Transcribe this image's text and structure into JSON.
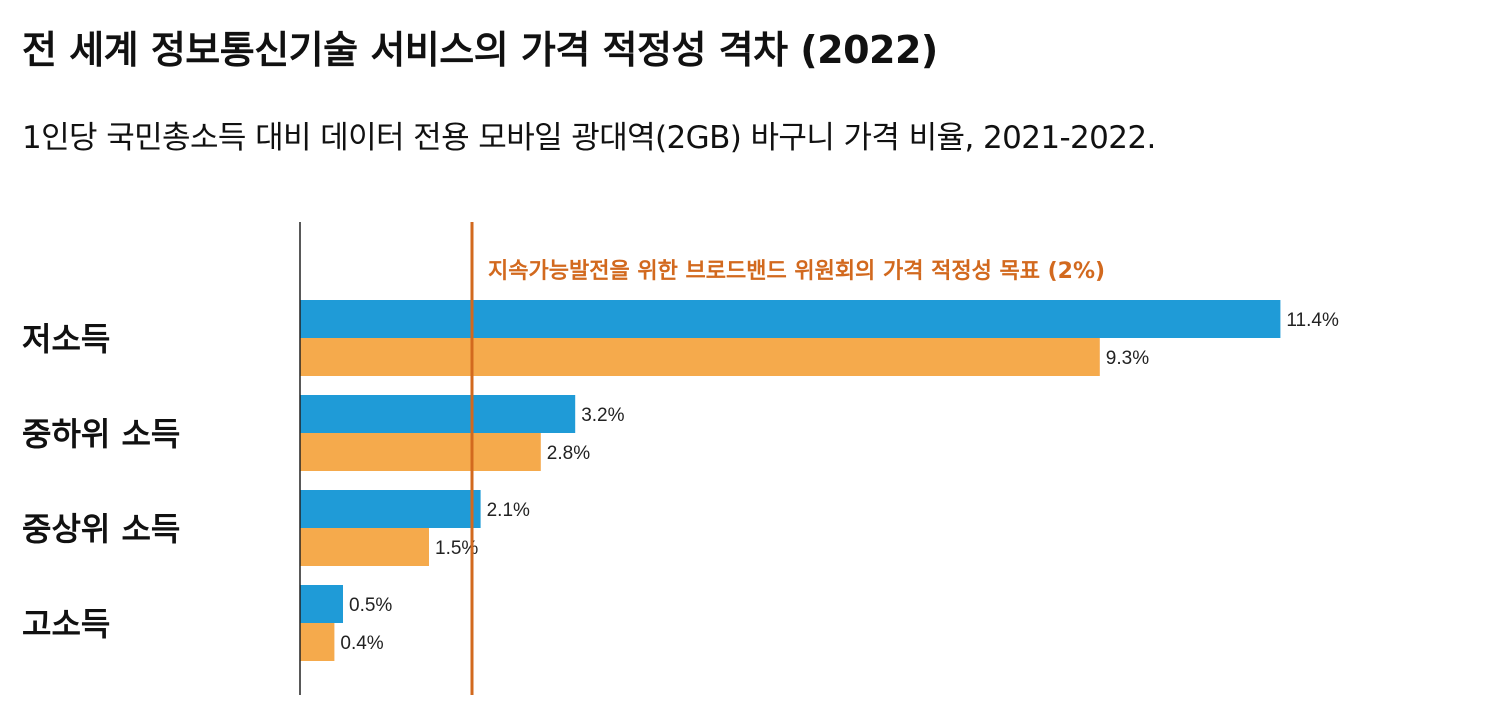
{
  "chart_data": {
    "type": "bar",
    "orientation": "horizontal",
    "title": "전 세계 정보통신기술 서비스의 가격 적정성 격차 (2022)",
    "subtitle": "1인당 국민총소득 대비 데이터 전용 모바일 광대역(2GB) 바구니 가격 비율, 2021-2022.",
    "categories": [
      "저소득",
      "중하위 소득",
      "중상위 소득",
      "고소득"
    ],
    "series": [
      {
        "color": "#1F9BD7",
        "values": [
          11.4,
          3.2,
          2.1,
          0.5
        ],
        "labels": [
          "11.4%",
          "3.2%",
          "2.1%",
          "0.5%"
        ]
      },
      {
        "color": "#F5AA4C",
        "values": [
          9.3,
          2.8,
          1.5,
          0.4
        ],
        "labels": [
          "9.3%",
          "2.8%",
          "1.5%",
          "0.4%"
        ]
      }
    ],
    "xlim": [
      0,
      11.4
    ],
    "grid": false,
    "reference_line": {
      "value": 2,
      "label": "지속가능발전을 위한 브로드밴드 위원회의 가격 적정성 목표 (2%)",
      "color": "#D2691E"
    }
  }
}
